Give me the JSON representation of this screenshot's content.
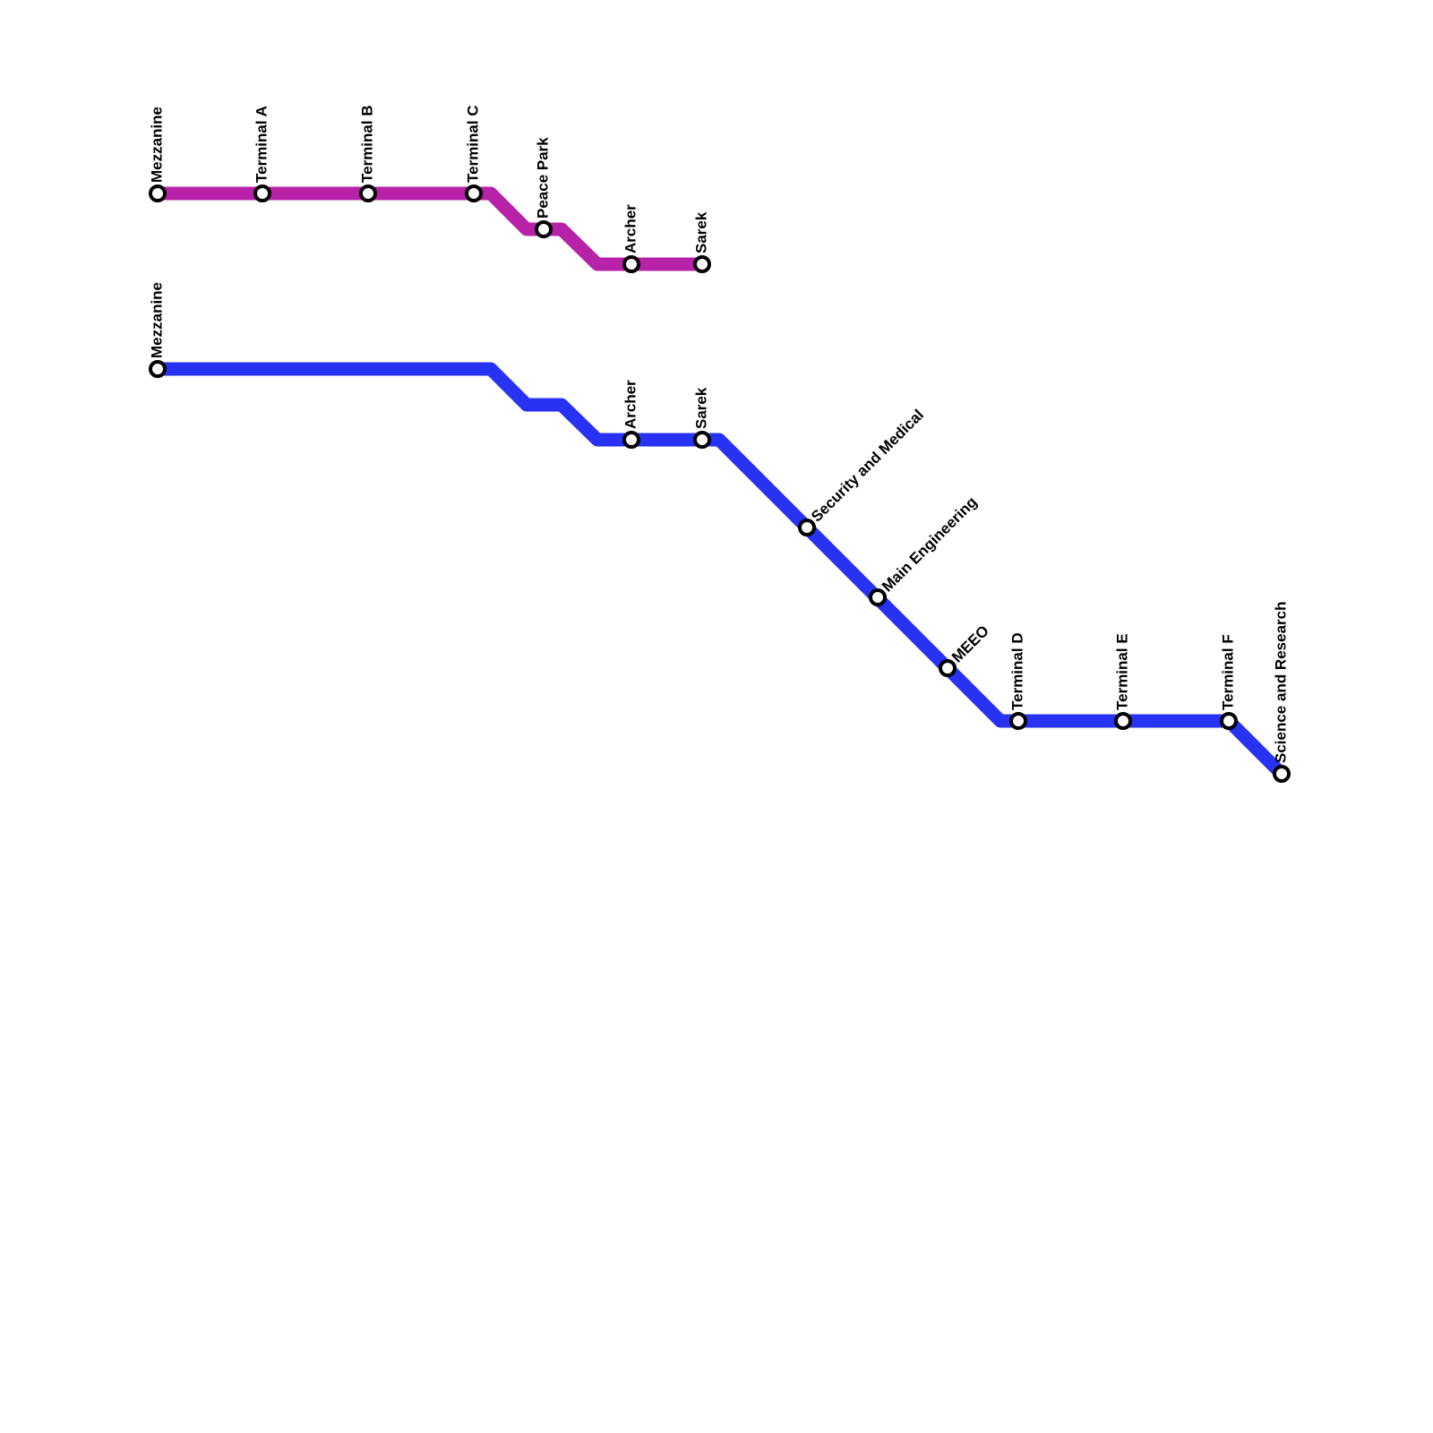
{
  "lines": [
    {
      "color": "#b822a8",
      "stations": [
        "Mezzanine",
        "Terminal A",
        "Terminal B",
        "Terminal C",
        "Peace Park",
        "Archer",
        "Sarek"
      ]
    },
    {
      "color": "#2832f2",
      "stations": [
        "Mezzanine",
        "Archer",
        "Sarek",
        "Security and Medical",
        "Main Engineering",
        "MEEO",
        "Terminal D",
        "Terminal E",
        "Terminal F",
        "Science and Research"
      ]
    }
  ]
}
